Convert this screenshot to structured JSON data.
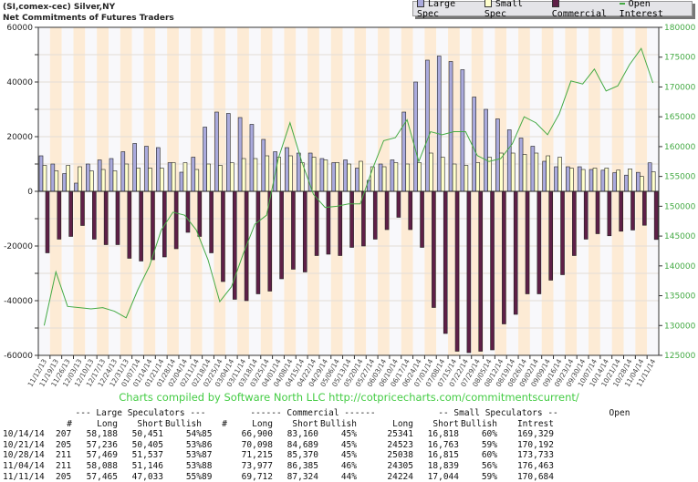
{
  "header": {
    "line1": "(SI,comex-cec) Silver,NY",
    "line2": "Net Commitments of Futures Traders"
  },
  "legend": [
    {
      "label": "Large Spec",
      "color": "#aaaadd"
    },
    {
      "label": "Small Spec",
      "color": "#ffffcc"
    },
    {
      "label": "Commercial",
      "color": "#5e1f47"
    },
    {
      "label": "Open Interest",
      "color": "#44aa44"
    }
  ],
  "credit": "Charts compiled by Software North LLC  http://cotpricecharts.com/commitmentscurrent/",
  "chart_data": {
    "type": "bar",
    "ylim": [
      -60000,
      60000
    ],
    "y2lim": [
      125000,
      180000
    ],
    "yticks": [
      -60000,
      -40000,
      -20000,
      0,
      20000,
      40000,
      60000
    ],
    "y2ticks": [
      125000,
      130000,
      135000,
      140000,
      145000,
      150000,
      155000,
      160000,
      165000,
      170000,
      175000,
      180000
    ],
    "grid": true,
    "legend_position": "top-right",
    "categories": [
      "11/12/13",
      "11/19/13",
      "11/26/13",
      "12/03/13",
      "12/10/13",
      "12/17/13",
      "12/24/13",
      "12/31/13",
      "01/07/14",
      "01/14/14",
      "01/21/14",
      "01/28/14",
      "02/04/14",
      "02/11/14",
      "02/18/14",
      "02/25/14",
      "03/04/14",
      "03/11/14",
      "03/18/14",
      "03/25/14",
      "04/01/14",
      "04/08/14",
      "04/15/14",
      "04/22/14",
      "04/29/14",
      "05/06/14",
      "05/13/14",
      "05/20/14",
      "05/27/14",
      "06/03/14",
      "06/10/14",
      "06/17/14",
      "06/24/14",
      "07/01/14",
      "07/08/14",
      "07/15/14",
      "07/22/14",
      "07/29/14",
      "08/05/14",
      "08/12/14",
      "08/19/14",
      "08/26/14",
      "09/02/14",
      "09/09/14",
      "09/16/14",
      "09/23/14",
      "09/30/14",
      "10/07/14",
      "10/14/14",
      "10/21/14",
      "10/28/14",
      "11/04/14",
      "11/11/14"
    ],
    "series": [
      {
        "name": "Large Spec",
        "axis": "left",
        "values": [
          13000,
          10000,
          6500,
          3000,
          10000,
          11500,
          12000,
          14500,
          17500,
          16500,
          16000,
          10500,
          7000,
          12500,
          23500,
          29000,
          28500,
          27000,
          24500,
          19000,
          14500,
          16000,
          14000,
          14000,
          12000,
          10500,
          11500,
          8500,
          4000,
          10000,
          11500,
          29000,
          40000,
          48000,
          49500,
          47500,
          44500,
          34500,
          30000,
          26500,
          22500,
          19500,
          16500,
          11000,
          9000,
          9000,
          9000,
          8000,
          7737,
          6831,
          5932,
          6942,
          10432
        ]
      },
      {
        "name": "Small Spec",
        "axis": "left",
        "values": [
          9500,
          7500,
          9500,
          9000,
          7500,
          8000,
          7500,
          10000,
          8500,
          8500,
          8500,
          10500,
          10500,
          8000,
          10000,
          9500,
          10500,
          12000,
          12000,
          13000,
          12500,
          13000,
          10500,
          12500,
          11500,
          10500,
          10000,
          11000,
          9000,
          9000,
          10500,
          10000,
          10500,
          14000,
          12500,
          10000,
          9500,
          10500,
          12500,
          14000,
          14000,
          13500,
          14000,
          13000,
          12500,
          8500,
          8000,
          8500,
          8523,
          7760,
          8223,
          5466,
          7180
        ]
      },
      {
        "name": "Commercial",
        "axis": "left",
        "values": [
          -22500,
          -17500,
          -16500,
          -12500,
          -17500,
          -19500,
          -19500,
          -24500,
          -25500,
          -25000,
          -24000,
          -21000,
          -15000,
          -16500,
          -22500,
          -33000,
          -39500,
          -40000,
          -37500,
          -36500,
          -32000,
          -28500,
          -29500,
          -23500,
          -23000,
          -23500,
          -20500,
          -20000,
          -17500,
          -14000,
          -9500,
          -14000,
          -20500,
          -42500,
          -52000,
          -58500,
          -59000,
          -58500,
          -58000,
          -48500,
          -45000,
          -37500,
          -37500,
          -32500,
          -30500,
          -23500,
          -17500,
          -15500,
          -16260,
          -14591,
          -14155,
          -12408,
          -17612
        ]
      },
      {
        "name": "Open Interest",
        "axis": "right",
        "values": [
          130000,
          139000,
          133200,
          133000,
          132800,
          133000,
          132400,
          131300,
          136000,
          140000,
          146000,
          149000,
          148500,
          146000,
          141000,
          134000,
          136500,
          142000,
          147000,
          148500,
          158000,
          164000,
          157500,
          152000,
          149800,
          150000,
          150400,
          150400,
          156000,
          161000,
          161500,
          164500,
          157500,
          162500,
          162000,
          162500,
          162500,
          158500,
          157500,
          158000,
          160500,
          165000,
          164000,
          162000,
          165500,
          171000,
          170500,
          173000,
          169329,
          170192,
          173733,
          176463,
          170684
        ]
      }
    ]
  },
  "table": {
    "group_headers": [
      "--- Large Speculators ---",
      "------ Commercial ------",
      "-- Small Speculators --",
      "Open"
    ],
    "columns": [
      "#",
      "Long",
      "Short",
      "Bullish",
      "#",
      "Long",
      "Short",
      "Bullish",
      "Long",
      "Short",
      "Bullish",
      "Intrest"
    ],
    "rows": [
      [
        "10/14/14",
        "207",
        "58,188",
        "50,451",
        "54%",
        "85",
        "66,900",
        "83,160",
        "45%",
        "25341",
        "16,818",
        "60%",
        "169,329"
      ],
      [
        "10/21/14",
        "205",
        "57,236",
        "50,405",
        "53%",
        "86",
        "70,098",
        "84,689",
        "45%",
        "24523",
        "16,763",
        "59%",
        "170,192"
      ],
      [
        "10/28/14",
        "211",
        "57,469",
        "51,537",
        "53%",
        "87",
        "71,215",
        "85,370",
        "45%",
        "25038",
        "16,815",
        "60%",
        "173,733"
      ],
      [
        "11/04/14",
        "211",
        "58,088",
        "51,146",
        "53%",
        "88",
        "73,977",
        "86,385",
        "46%",
        "24305",
        "18,839",
        "56%",
        "176,463"
      ],
      [
        "11/11/14",
        "205",
        "57,465",
        "47,033",
        "55%",
        "89",
        "69,712",
        "87,324",
        "44%",
        "24224",
        "17,044",
        "59%",
        "170,684"
      ]
    ]
  }
}
